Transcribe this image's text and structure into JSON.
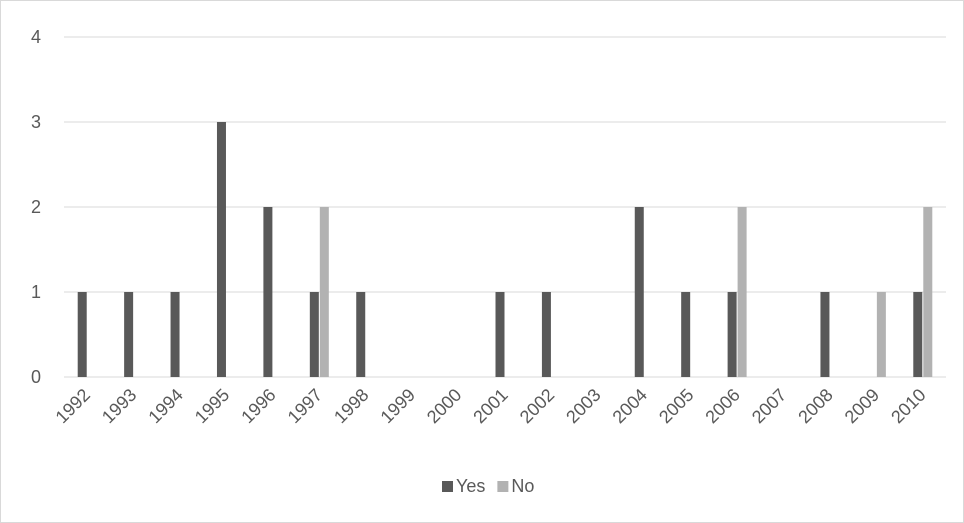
{
  "chart_data": {
    "type": "bar",
    "categories": [
      "1992",
      "1993",
      "1994",
      "1995",
      "1996",
      "1997",
      "1998",
      "1999",
      "2000",
      "2001",
      "2002",
      "2003",
      "2004",
      "2005",
      "2006",
      "2007",
      "2008",
      "2009",
      "2010"
    ],
    "series": [
      {
        "name": "Yes",
        "color": "#595959",
        "values": [
          1,
          1,
          1,
          3,
          2,
          1,
          1,
          0,
          0,
          1,
          1,
          0,
          2,
          1,
          1,
          0,
          1,
          0,
          1
        ]
      },
      {
        "name": "No",
        "color": "#b2b2b2",
        "values": [
          0,
          0,
          0,
          0,
          0,
          2,
          0,
          0,
          0,
          0,
          0,
          0,
          0,
          0,
          2,
          0,
          0,
          1,
          2
        ]
      }
    ],
    "yticks": [
      "0",
      "1",
      "2",
      "3",
      "4"
    ],
    "ylim": [
      0,
      4
    ],
    "title": "",
    "xlabel": "",
    "ylabel": "",
    "grid": true,
    "legend_position": "bottom"
  }
}
